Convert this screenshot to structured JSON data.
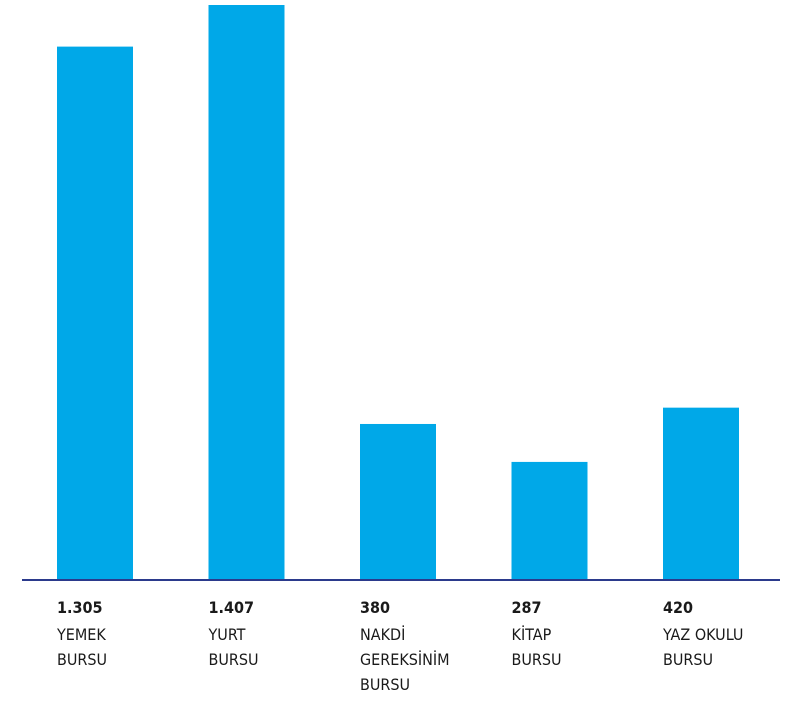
{
  "chart_data": {
    "type": "bar",
    "categories": [
      [
        "YEMEK",
        "BURSU"
      ],
      [
        "YURT",
        "BURSU"
      ],
      [
        "NAKDİ",
        "GEREKSİNİM",
        "BURSU"
      ],
      [
        "KİTAP",
        "BURSU"
      ],
      [
        "YAZ OKULU",
        "BURSU"
      ]
    ],
    "values": [
      1305,
      1407,
      380,
      287,
      420
    ],
    "value_labels": [
      "1.305",
      "1.407",
      "380",
      "287",
      "420"
    ],
    "title": "",
    "xlabel": "",
    "ylabel": "",
    "ylim": [
      0,
      1407
    ],
    "grid": false,
    "legend": "none",
    "colors": {
      "bar": "#00a8e8",
      "axis": "#2b3a8c",
      "text": "#1a1a1a"
    }
  }
}
